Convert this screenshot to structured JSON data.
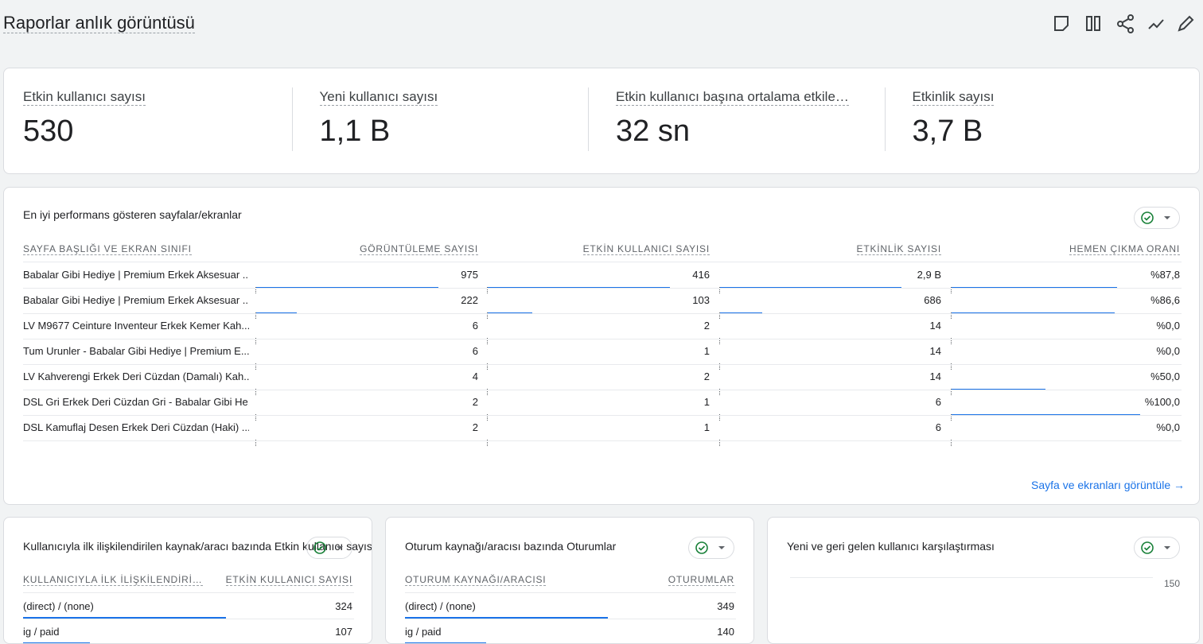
{
  "header": {
    "title": "Raporlar anlık görüntüsü"
  },
  "kpis": [
    {
      "label": "Etkin kullanıcı sayısı",
      "value": "530"
    },
    {
      "label": "Yeni kullanıcı sayısı",
      "value": "1,1 B"
    },
    {
      "label": "Etkin kullanıcı başına ortalama etkile…",
      "value": "32 sn"
    },
    {
      "label": "Etkinlik sayısı",
      "value": "3,7 B"
    }
  ],
  "top_pages": {
    "title": "En iyi performans gösteren sayfalar/ekranlar",
    "columns": [
      "SAYFA BAŞLIĞI VE EKRAN SINIFI",
      "GÖRÜNTÜLEME SAYISI",
      "ETKİN KULLANICI SAYISI",
      "ETKİNLİK SAYISI",
      "HEMEN ÇIKMA ORANI"
    ],
    "rows": [
      [
        "Babalar Gibi Hediye | Premium Erkek Aksesuar ...",
        "975",
        "416",
        "2,9 B",
        "%87,8"
      ],
      [
        "Babalar Gibi Hediye | Premium Erkek Aksesuar ...",
        "222",
        "103",
        "686",
        "%86,6"
      ],
      [
        "LV M9677 Ceinture Inventeur Erkek Kemer Kah...",
        "6",
        "2",
        "14",
        "%0,0"
      ],
      [
        "Tum Urunler - Babalar Gibi Hediye | Premium E...",
        "6",
        "1",
        "14",
        "%0,0"
      ],
      [
        "LV Kahverengi Erkek Deri Cüzdan (Damalı) Kah...",
        "4",
        "2",
        "14",
        "%50,0"
      ],
      [
        "DSL Gri Erkek Deri Cüzdan Gri - Babalar Gibi He...",
        "2",
        "1",
        "6",
        "%100,0"
      ],
      [
        "DSL Kamuflaj Desen Erkek Deri Cüzdan (Haki) ...",
        "2",
        "1",
        "6",
        "%0,0"
      ]
    ],
    "link": "Sayfa ve ekranları görüntüle"
  },
  "source_card": {
    "title": "Kullanıcıyla ilk ilişkilendirilen kaynak/aracı bazında Etkin kullanıcı sayısı",
    "columns": [
      "KULLANICIYLA İLK İLİŞKİLENDİRİ…",
      "ETKİN KULLANICI SAYISI"
    ],
    "rows": [
      [
        "(direct) / (none)",
        "324"
      ],
      [
        "ig / paid",
        "107"
      ]
    ]
  },
  "session_card": {
    "title": "Oturum kaynağı/aracısı bazında Oturumlar",
    "columns": [
      "OTURUM KAYNAĞI/ARACISI",
      "OTURUMLAR"
    ],
    "rows": [
      [
        "(direct) / (none)",
        "349"
      ],
      [
        "ig / paid",
        "140"
      ]
    ]
  },
  "comparison_card": {
    "title": "Yeni ve geri gelen kullanıcı karşılaştırması",
    "yticks": [
      150
    ]
  }
}
